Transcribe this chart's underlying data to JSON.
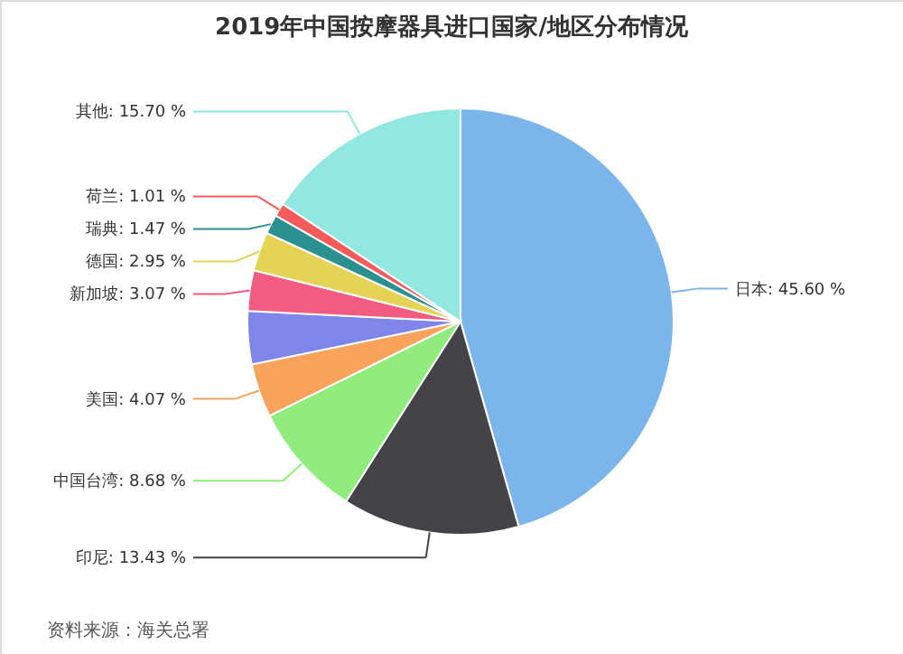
{
  "chart_data": {
    "type": "pie",
    "title": "2019年中国按摩器具进口国家/地区分布情况",
    "categories": [
      "日本",
      "印尼",
      "中国台湾",
      "美国",
      null,
      "新加坡",
      "德国",
      "瑞典",
      "荷兰",
      "其他"
    ],
    "values": [
      45.6,
      13.43,
      8.68,
      4.07,
      4.02,
      3.07,
      2.95,
      1.47,
      1.01,
      15.7
    ],
    "value_labels": [
      "45.60 %",
      "13.43 %",
      "8.68 %",
      "4.07 %",
      null,
      "3.07 %",
      "2.95 %",
      "1.47 %",
      "1.01 %",
      "15.70 %"
    ],
    "colors": [
      "#7cb5ec",
      "#434348",
      "#90ed7d",
      "#f7a35c",
      "#8085e9",
      "#f15c80",
      "#e4d354",
      "#2b908f",
      "#f45b5b",
      "#91e8e1"
    ],
    "annotations": [
      "资料来源：海关总署"
    ]
  }
}
